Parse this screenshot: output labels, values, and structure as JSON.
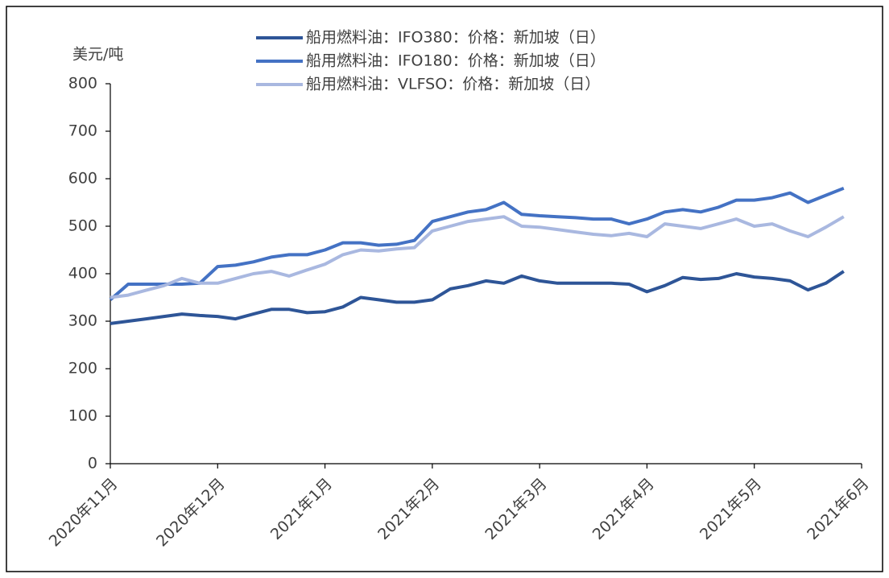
{
  "chart_data": {
    "type": "line",
    "y_axis_label": "美元/吨",
    "categories": [
      "2020年11月",
      null,
      null,
      null,
      null,
      null,
      "2020年12月",
      null,
      null,
      null,
      null,
      null,
      "2021年1月",
      null,
      null,
      null,
      null,
      null,
      "2021年2月",
      null,
      null,
      null,
      null,
      null,
      "2021年3月",
      null,
      null,
      null,
      null,
      null,
      "2021年4月",
      null,
      null,
      null,
      null,
      null,
      "2021年5月",
      null,
      null,
      null,
      null,
      null,
      "2021年6月"
    ],
    "series": [
      {
        "name": "船用燃料油：IFO380：价格：新加坡（日）",
        "color": "#2e5597",
        "values": [
          295,
          300,
          305,
          310,
          315,
          312,
          310,
          305,
          315,
          325,
          325,
          318,
          320,
          330,
          350,
          345,
          340,
          340,
          345,
          368,
          375,
          385,
          380,
          395,
          385,
          380,
          380,
          380,
          380,
          378,
          362,
          375,
          392,
          388,
          390,
          400,
          393,
          390,
          385,
          366,
          380,
          405,
          null
        ]
      },
      {
        "name": "船用燃料油：IFO180：价格：新加坡（日）",
        "color": "#4472c4",
        "values": [
          345,
          378,
          378,
          378,
          378,
          380,
          415,
          418,
          425,
          435,
          440,
          440,
          450,
          465,
          465,
          460,
          462,
          470,
          510,
          520,
          530,
          535,
          550,
          525,
          522,
          520,
          518,
          515,
          515,
          505,
          515,
          530,
          535,
          530,
          540,
          555,
          555,
          560,
          570,
          550,
          565,
          580,
          null
        ]
      },
      {
        "name": "船用燃料油：VLFSO：价格：新加坡（日）",
        "color": "#a9b8e0",
        "values": [
          350,
          355,
          365,
          375,
          390,
          380,
          380,
          390,
          400,
          405,
          395,
          408,
          420,
          440,
          450,
          448,
          452,
          455,
          490,
          500,
          510,
          515,
          520,
          500,
          498,
          493,
          488,
          483,
          480,
          485,
          478,
          505,
          500,
          495,
          505,
          515,
          500,
          505,
          490,
          478,
          498,
          520,
          null
        ]
      }
    ],
    "ylim": [
      0,
      800
    ],
    "yticks": [
      0,
      100,
      200,
      300,
      400,
      500,
      600,
      700,
      800
    ]
  }
}
